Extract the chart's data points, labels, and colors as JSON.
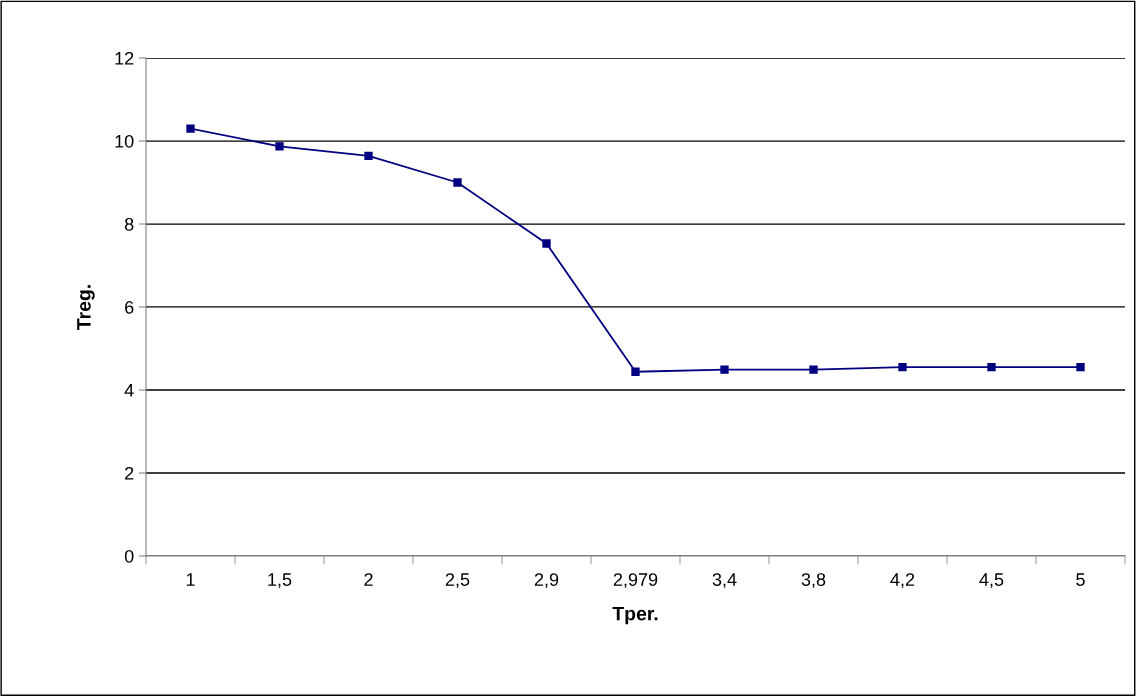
{
  "chart_data": {
    "type": "line",
    "xlabel": "Tper.",
    "ylabel": "Treg.",
    "categories": [
      "1",
      "1,5",
      "2",
      "2,5",
      "2,9",
      "2,979",
      "3,4",
      "3,8",
      "4,2",
      "4,5",
      "5"
    ],
    "series": [
      {
        "color": "#000080",
        "values": [
          10.3,
          9.87,
          9.64,
          9.0,
          7.53,
          4.44,
          4.49,
          4.49,
          4.55,
          4.55,
          4.55
        ]
      }
    ],
    "ylim": [
      0,
      12
    ],
    "yticks": [
      0,
      2,
      4,
      6,
      8,
      10,
      12
    ],
    "grid": "y",
    "marker": "square",
    "line_style": "solid",
    "legend": false
  }
}
